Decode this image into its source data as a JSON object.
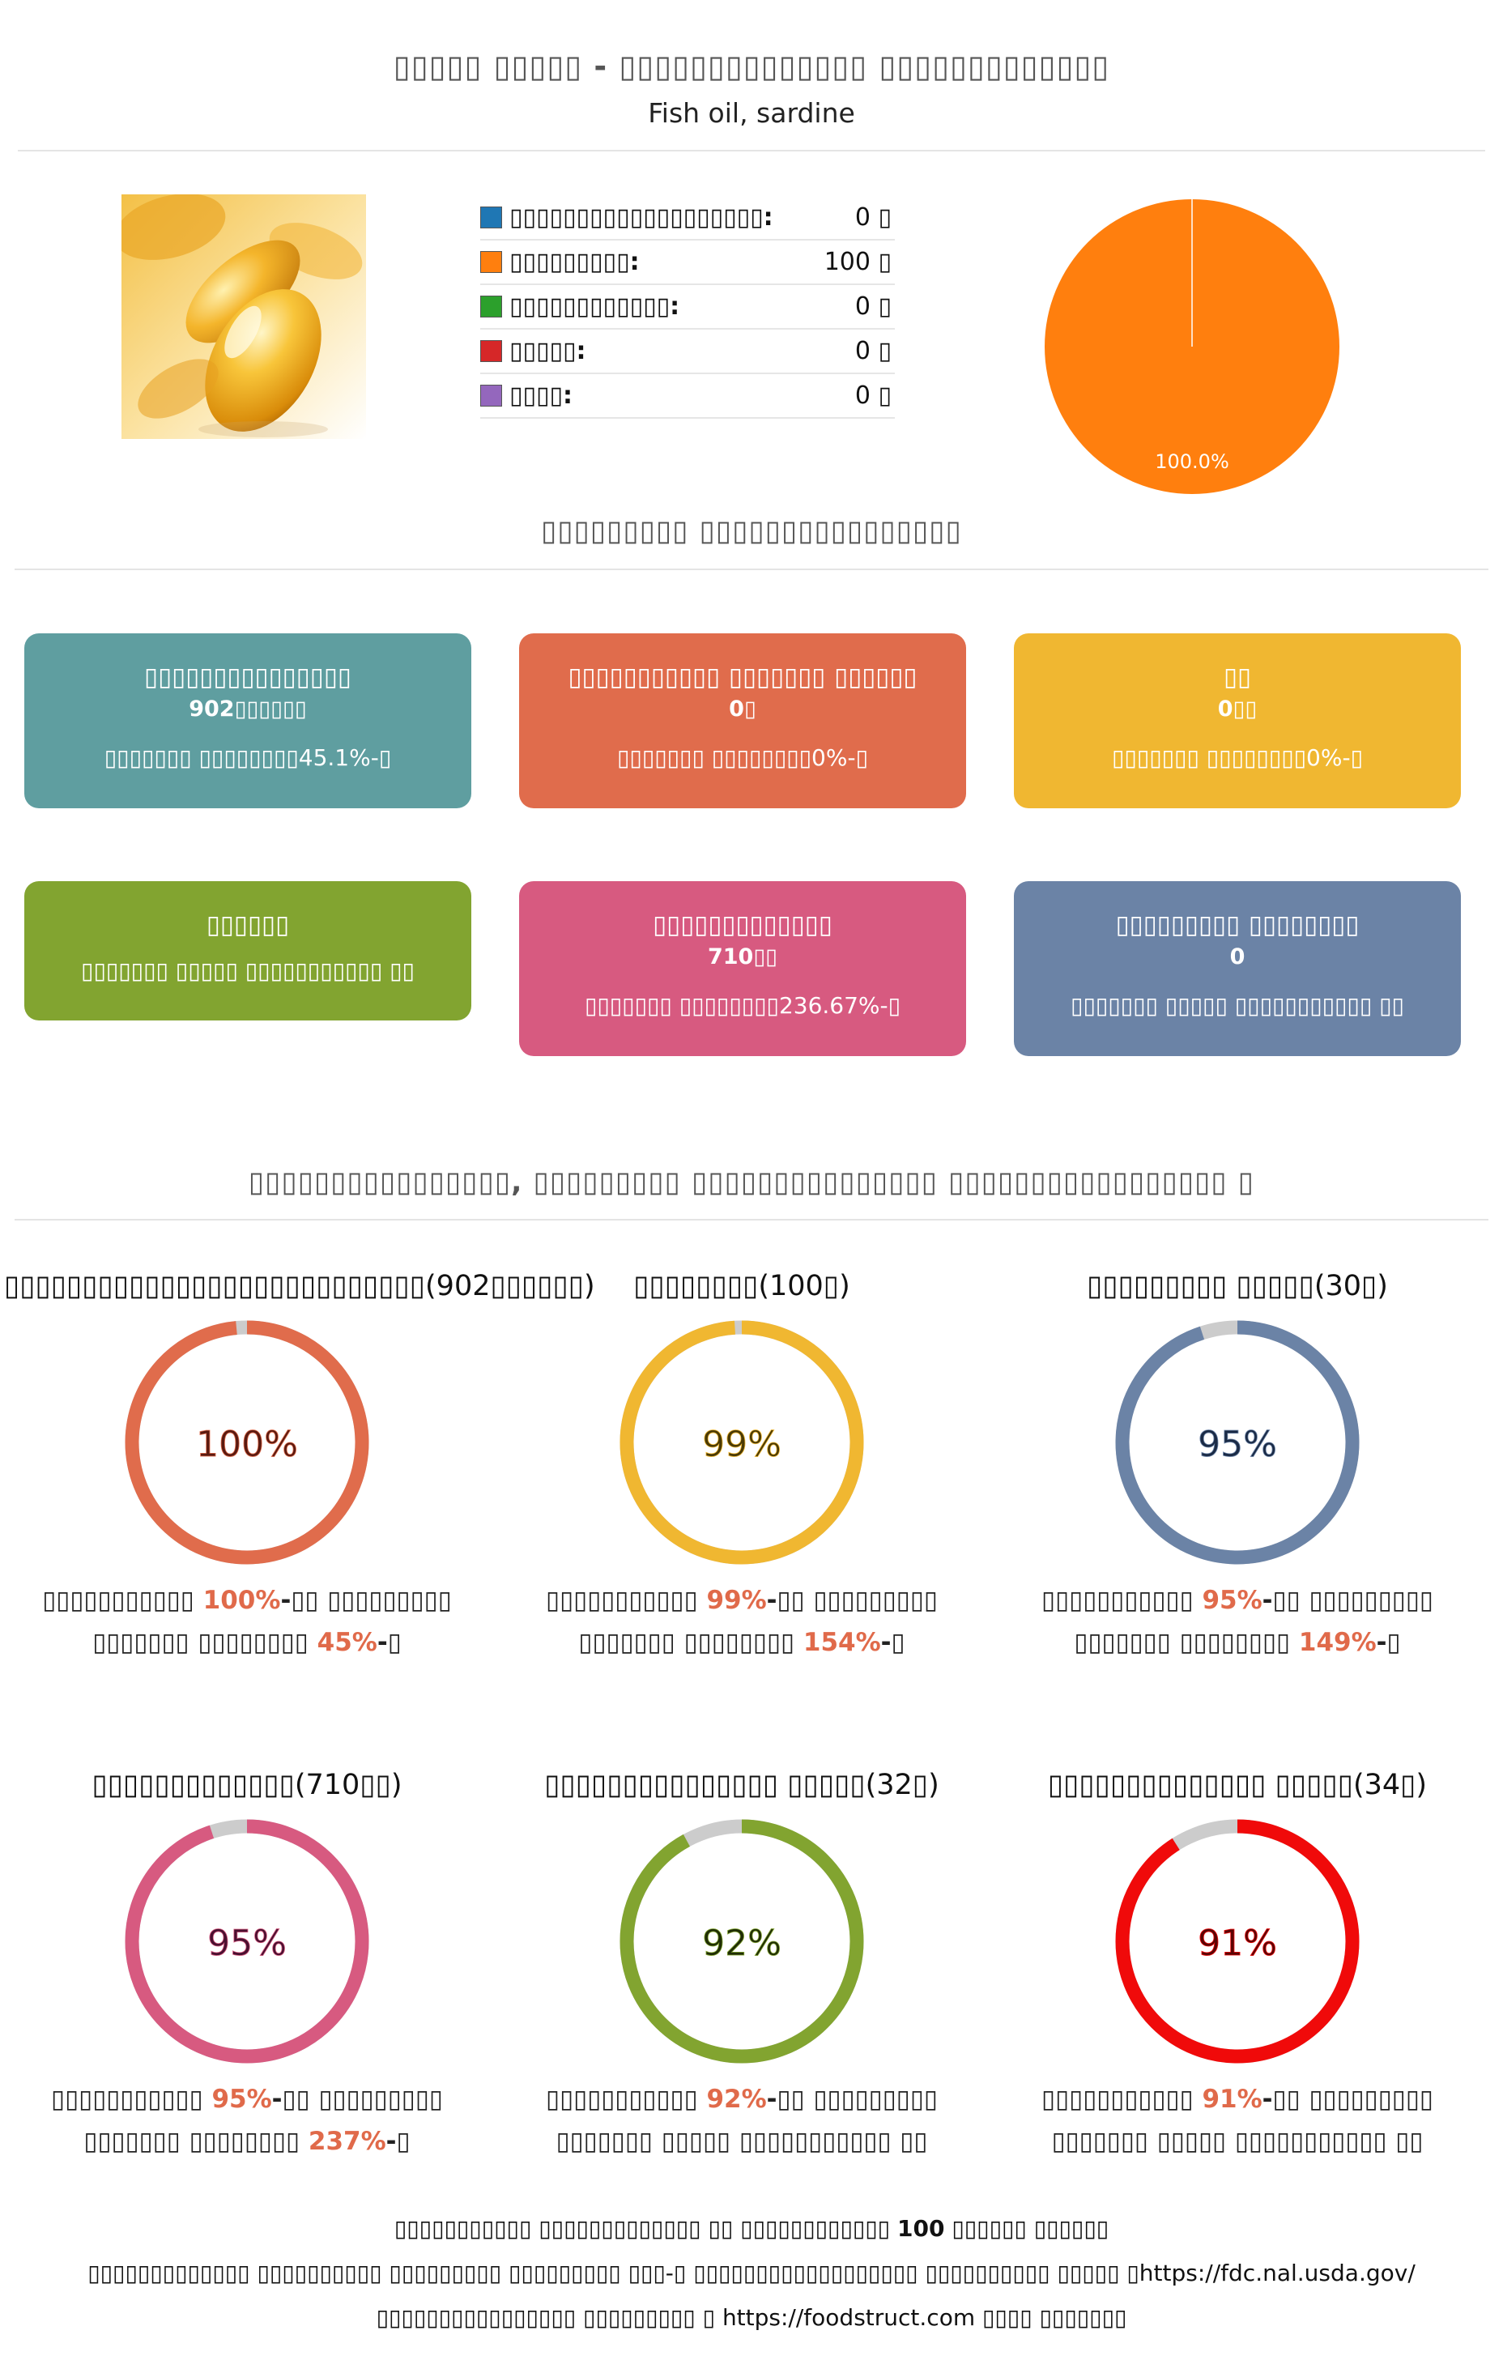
{
  "header": {
    "title": "▯▯▯▯▯ ▯▯▯▯▯ - ▯▯▯▯▯▯▯▯▯▯▯▯▯▯ ▯▯▯▯▯▯▯▯▯▯▯▯▯",
    "subtitle": "Fish oil, sardine"
  },
  "macros": [
    {
      "label": "▯▯▯▯▯▯▯▯▯▯▯▯▯▯▯▯▯▯▯:",
      "value": "0 ▯",
      "color": "#1f77b4"
    },
    {
      "label": "▯▯▯▯▯▯▯▯▯:",
      "value": "100 ▯",
      "color": "#ff7f0e"
    },
    {
      "label": "▯▯▯▯▯▯▯▯▯▯▯▯:",
      "value": "0 ▯",
      "color": "#2ca02c"
    },
    {
      "label": "▯▯▯▯▯:",
      "value": "0 ▯",
      "color": "#d62728"
    },
    {
      "label": "▯▯▯▯:",
      "value": "0 ▯",
      "color": "#9467bd"
    }
  ],
  "chart_data": {
    "type": "pie",
    "slices": [
      {
        "label": "▯▯▯▯▯▯▯▯▯",
        "value": 100.0,
        "color": "#ff7f0e"
      }
    ],
    "data_labels": [
      "100.0%"
    ]
  },
  "section1": {
    "title": "▯▯▯▯▯▯▯▯▯ ▯▯▯▯▯▯▯▯▯▯▯▯▯▯▯▯"
  },
  "cards": [
    {
      "title": "▯▯▯▯▯▯▯▯▯▯▯▯▯▯▯",
      "value": "902▯▯▯▯▯▯",
      "desc": "▯▯▯▯▯▯▯ ▯▯▯▯▯▯▯▯45.1%-▯",
      "color": "#5f9ea0"
    },
    {
      "title": "▯▯▯▯▯▯▯▯▯▯▯ ▯▯▯▯▯▯▯ ▯▯▯▯▯▯",
      "value": "0▯",
      "desc": "▯▯▯▯▯▯▯ ▯▯▯▯▯▯▯▯0%-▯",
      "color": "#e06c4c"
    },
    {
      "title": "▯▯",
      "value": "0▯▯",
      "desc": "▯▯▯▯▯▯▯ ▯▯▯▯▯▯▯▯0%-▯",
      "color": "#f0b731"
    },
    {
      "title": "▯▯▯▯▯▯",
      "value": "",
      "desc": "▯▯▯▯▯▯▯ ▯▯▯▯▯ ▯▯▯▯▯▯▯▯▯▯▯ ▯▯",
      "color": "#82a430"
    },
    {
      "title": "▯▯▯▯▯▯▯▯▯▯▯▯▯",
      "value": "710▯▯",
      "desc": "▯▯▯▯▯▯▯ ▯▯▯▯▯▯▯▯236.67%-▯",
      "color": "#d75a80"
    },
    {
      "title": "▯▯▯▯▯▯▯▯▯ ▯▯▯▯▯▯▯▯",
      "value": "0",
      "desc": "▯▯▯▯▯▯▯ ▯▯▯▯▯ ▯▯▯▯▯▯▯▯▯▯▯ ▯▯",
      "color": "#6b83a6"
    }
  ],
  "section2": {
    "title": "▯▯▯▯▯▯▯▯▯▯▯▯▯▯▯▯, ▯▯▯▯▯▯▯▯▯ ▯▯▯▯▯▯▯▯▯▯▯▯▯▯▯ ▯▯▯▯▯▯▯▯▯▯▯▯▯▯▯▯▯ ▯"
  },
  "rings": [
    {
      "title": "▯▯▯▯▯▯▯▯▯▯▯▯▯▯▯▯▯▯▯▯▯▯▯▯▯▯▯(902▯▯▯▯▯▯)",
      "percent": 100,
      "percent_label": "100%",
      "color": "#e06c4c",
      "text_color": "#5a1a10",
      "desc_a": "▯▯▯▯▯▯▯▯▯▯▯ ",
      "desc_hl1": "100%",
      "desc_b": "-▯▯ ▯▯▯▯▯▯▯▯▯",
      "desc_c": "▯▯▯▯▯▯▯ ▯▯▯▯▯▯▯▯ ",
      "desc_hl2": "45%",
      "desc_d": "-▯"
    },
    {
      "title": "▯▯▯▯▯▯▯▯(100▯)",
      "percent": 99,
      "percent_label": "99%",
      "color": "#f0b731",
      "text_color": "#4a3a05",
      "desc_a": "▯▯▯▯▯▯▯▯▯▯▯ ",
      "desc_hl1": "99%",
      "desc_b": "-▯▯ ▯▯▯▯▯▯▯▯▯",
      "desc_c": "▯▯▯▯▯▯▯ ▯▯▯▯▯▯▯▯ ",
      "desc_hl2": "154%",
      "desc_d": "-▯"
    },
    {
      "title": "▯▯▯▯▯▯▯▯▯ ▯▯▯▯▯(30▯)",
      "percent": 95,
      "percent_label": "95%",
      "color": "#6b83a6",
      "text_color": "#1a2a45",
      "desc_a": "▯▯▯▯▯▯▯▯▯▯▯ ",
      "desc_hl1": "95%",
      "desc_b": "-▯▯ ▯▯▯▯▯▯▯▯▯",
      "desc_c": "▯▯▯▯▯▯▯ ▯▯▯▯▯▯▯▯ ",
      "desc_hl2": "149%",
      "desc_d": "-▯"
    },
    {
      "title": "▯▯▯▯▯▯▯▯▯▯▯▯▯(710▯▯)",
      "percent": 95,
      "percent_label": "95%",
      "color": "#d75a80",
      "text_color": "#4a1030",
      "desc_a": "▯▯▯▯▯▯▯▯▯▯▯ ",
      "desc_hl1": "95%",
      "desc_b": "-▯▯ ▯▯▯▯▯▯▯▯▯",
      "desc_c": "▯▯▯▯▯▯▯ ▯▯▯▯▯▯▯▯ ",
      "desc_hl2": "237%",
      "desc_d": "-▯"
    },
    {
      "title": "▯▯▯▯▯▯▯▯▯▯▯▯▯▯▯ ▯▯▯▯▯(32▯)",
      "percent": 92,
      "percent_label": "92%",
      "color": "#82a430",
      "text_color": "#1f2d05",
      "desc_a": "▯▯▯▯▯▯▯▯▯▯▯ ",
      "desc_hl1": "92%",
      "desc_b": "-▯▯ ▯▯▯▯▯▯▯▯▯",
      "desc_c": "▯▯▯▯▯▯▯ ▯▯▯▯▯ ▯▯▯▯▯▯▯▯▯▯▯ ▯▯",
      "desc_hl2": "",
      "desc_d": ""
    },
    {
      "title": "▯▯▯▯▯▯▯▯▯▯▯▯▯▯ ▯▯▯▯▯(34▯)",
      "percent": 91,
      "percent_label": "91%",
      "color": "#f00a0a",
      "text_color": "#5a0505",
      "desc_a": "▯▯▯▯▯▯▯▯▯▯▯ ",
      "desc_hl1": "91%",
      "desc_b": "-▯▯ ▯▯▯▯▯▯▯▯▯",
      "desc_c": "▯▯▯▯▯▯▯ ▯▯▯▯▯ ▯▯▯▯▯▯▯▯▯▯▯ ▯▯",
      "desc_hl2": "",
      "desc_d": ""
    }
  ],
  "footer": {
    "line1_a": "▯▯▯▯▯▯▯▯▯▯▯ ▯▯▯▯▯▯▯▯▯▯▯▯▯ ▯▯ ▯▯▯▯▯▯▯▯▯▯▯▯ ",
    "line1_b": "100",
    "line1_c": " ▯▯▯▯▯▯ ▯▯▯▯▯▯",
    "line2": "▯▯▯▯▯▯▯▯▯▯▯▯▯ ▯▯▯▯▯▯▯▯▯▯ ▯▯▯▯▯▯▯▯▯ ▯▯▯▯▯▯▯▯▯ ▯▯▯-▯ ▯▯▯▯▯▯▯▯▯▯▯▯▯▯▯▯▯▯ ▯▯▯▯▯▯▯▯▯▯ ▯▯▯▯▯ ▯",
    "line2_link": "https://fdc.nal.usda.gov/",
    "line3_a": "▯▯▯▯▯▯▯▯▯▯▯▯▯▯▯▯ ▯▯▯▯▯▯▯▯▯ ▯ ",
    "line3_link": "https://foodstruct.com",
    "line3_b": " ▯▯▯▯ ▯▯▯▯▯▯▯"
  }
}
